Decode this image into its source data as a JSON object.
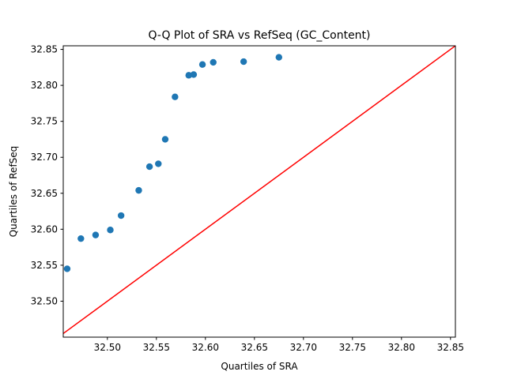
{
  "chart_data": {
    "type": "scatter",
    "title": "Q-Q Plot of SRA vs RefSeq (GC_Content)",
    "xlabel": "Quartiles of SRA",
    "ylabel": "Quartiles of RefSeq",
    "xlim": [
      32.455,
      32.855
    ],
    "ylim": [
      32.45,
      32.855
    ],
    "xticks": [
      "32.50",
      "32.55",
      "32.60",
      "32.65",
      "32.70",
      "32.75",
      "32.80",
      "32.85"
    ],
    "yticks": [
      "32.50",
      "32.55",
      "32.60",
      "32.65",
      "32.70",
      "32.75",
      "32.80",
      "32.85"
    ],
    "grid": false,
    "points": [
      {
        "x": 32.459,
        "y": 32.545
      },
      {
        "x": 32.473,
        "y": 32.587
      },
      {
        "x": 32.488,
        "y": 32.592
      },
      {
        "x": 32.503,
        "y": 32.599
      },
      {
        "x": 32.514,
        "y": 32.619
      },
      {
        "x": 32.532,
        "y": 32.654
      },
      {
        "x": 32.543,
        "y": 32.687
      },
      {
        "x": 32.552,
        "y": 32.691
      },
      {
        "x": 32.559,
        "y": 32.725
      },
      {
        "x": 32.569,
        "y": 32.784
      },
      {
        "x": 32.583,
        "y": 32.814
      },
      {
        "x": 32.588,
        "y": 32.815
      },
      {
        "x": 32.597,
        "y": 32.829
      },
      {
        "x": 32.608,
        "y": 32.832
      },
      {
        "x": 32.639,
        "y": 32.833
      },
      {
        "x": 32.675,
        "y": 32.839
      }
    ],
    "reference_line": {
      "from": [
        32.455,
        32.455
      ],
      "to": [
        32.855,
        32.855
      ]
    },
    "colors": {
      "points": "#1f77b4",
      "reference_line": "#ff0000"
    }
  }
}
